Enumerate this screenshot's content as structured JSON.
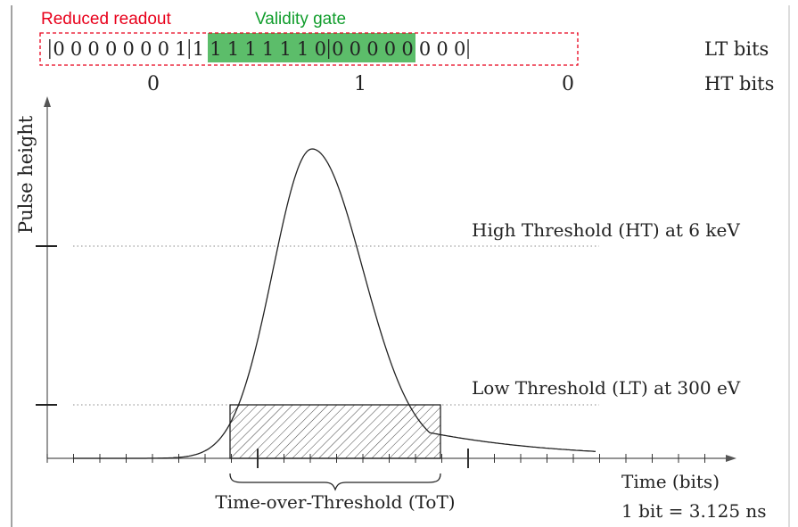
{
  "header": {
    "reduced_readout_label": "Reduced readout",
    "validity_gate_label": "Validity gate"
  },
  "lt_bits": {
    "label": "LT bits",
    "row": "|0 0 0 0 0 0 0 1|1 1 1 1 1 1 1 0|0 0 0 0 0 0 0 0|",
    "groups": [
      [
        "0",
        "0",
        "0",
        "0",
        "0",
        "0",
        "0",
        "1"
      ],
      [
        "1",
        "1",
        "1",
        "1",
        "1",
        "1",
        "1",
        "0"
      ],
      [
        "0",
        "0",
        "0",
        "0",
        "0",
        "0",
        "0",
        "0"
      ]
    ]
  },
  "ht_bits": {
    "label": "HT bits",
    "values": [
      "0",
      "1",
      "0"
    ]
  },
  "axes": {
    "y_label": "Pulse height",
    "x_label": "Time (bits)",
    "bit_note": "1 bit = 3.125 ns"
  },
  "thresholds": {
    "high_label": "High Threshold (HT) at 6 keV",
    "low_label": "Low Threshold (LT) at 300 eV"
  },
  "tot_label": "Time-over-Threshold (ToT)",
  "colors": {
    "reduced_readout": "#e8001b",
    "validity_gate_text": "#119d2c",
    "validity_gate_fill": "#5cbd6a",
    "ink": "#222222",
    "threshold_dots": "#888888"
  }
}
